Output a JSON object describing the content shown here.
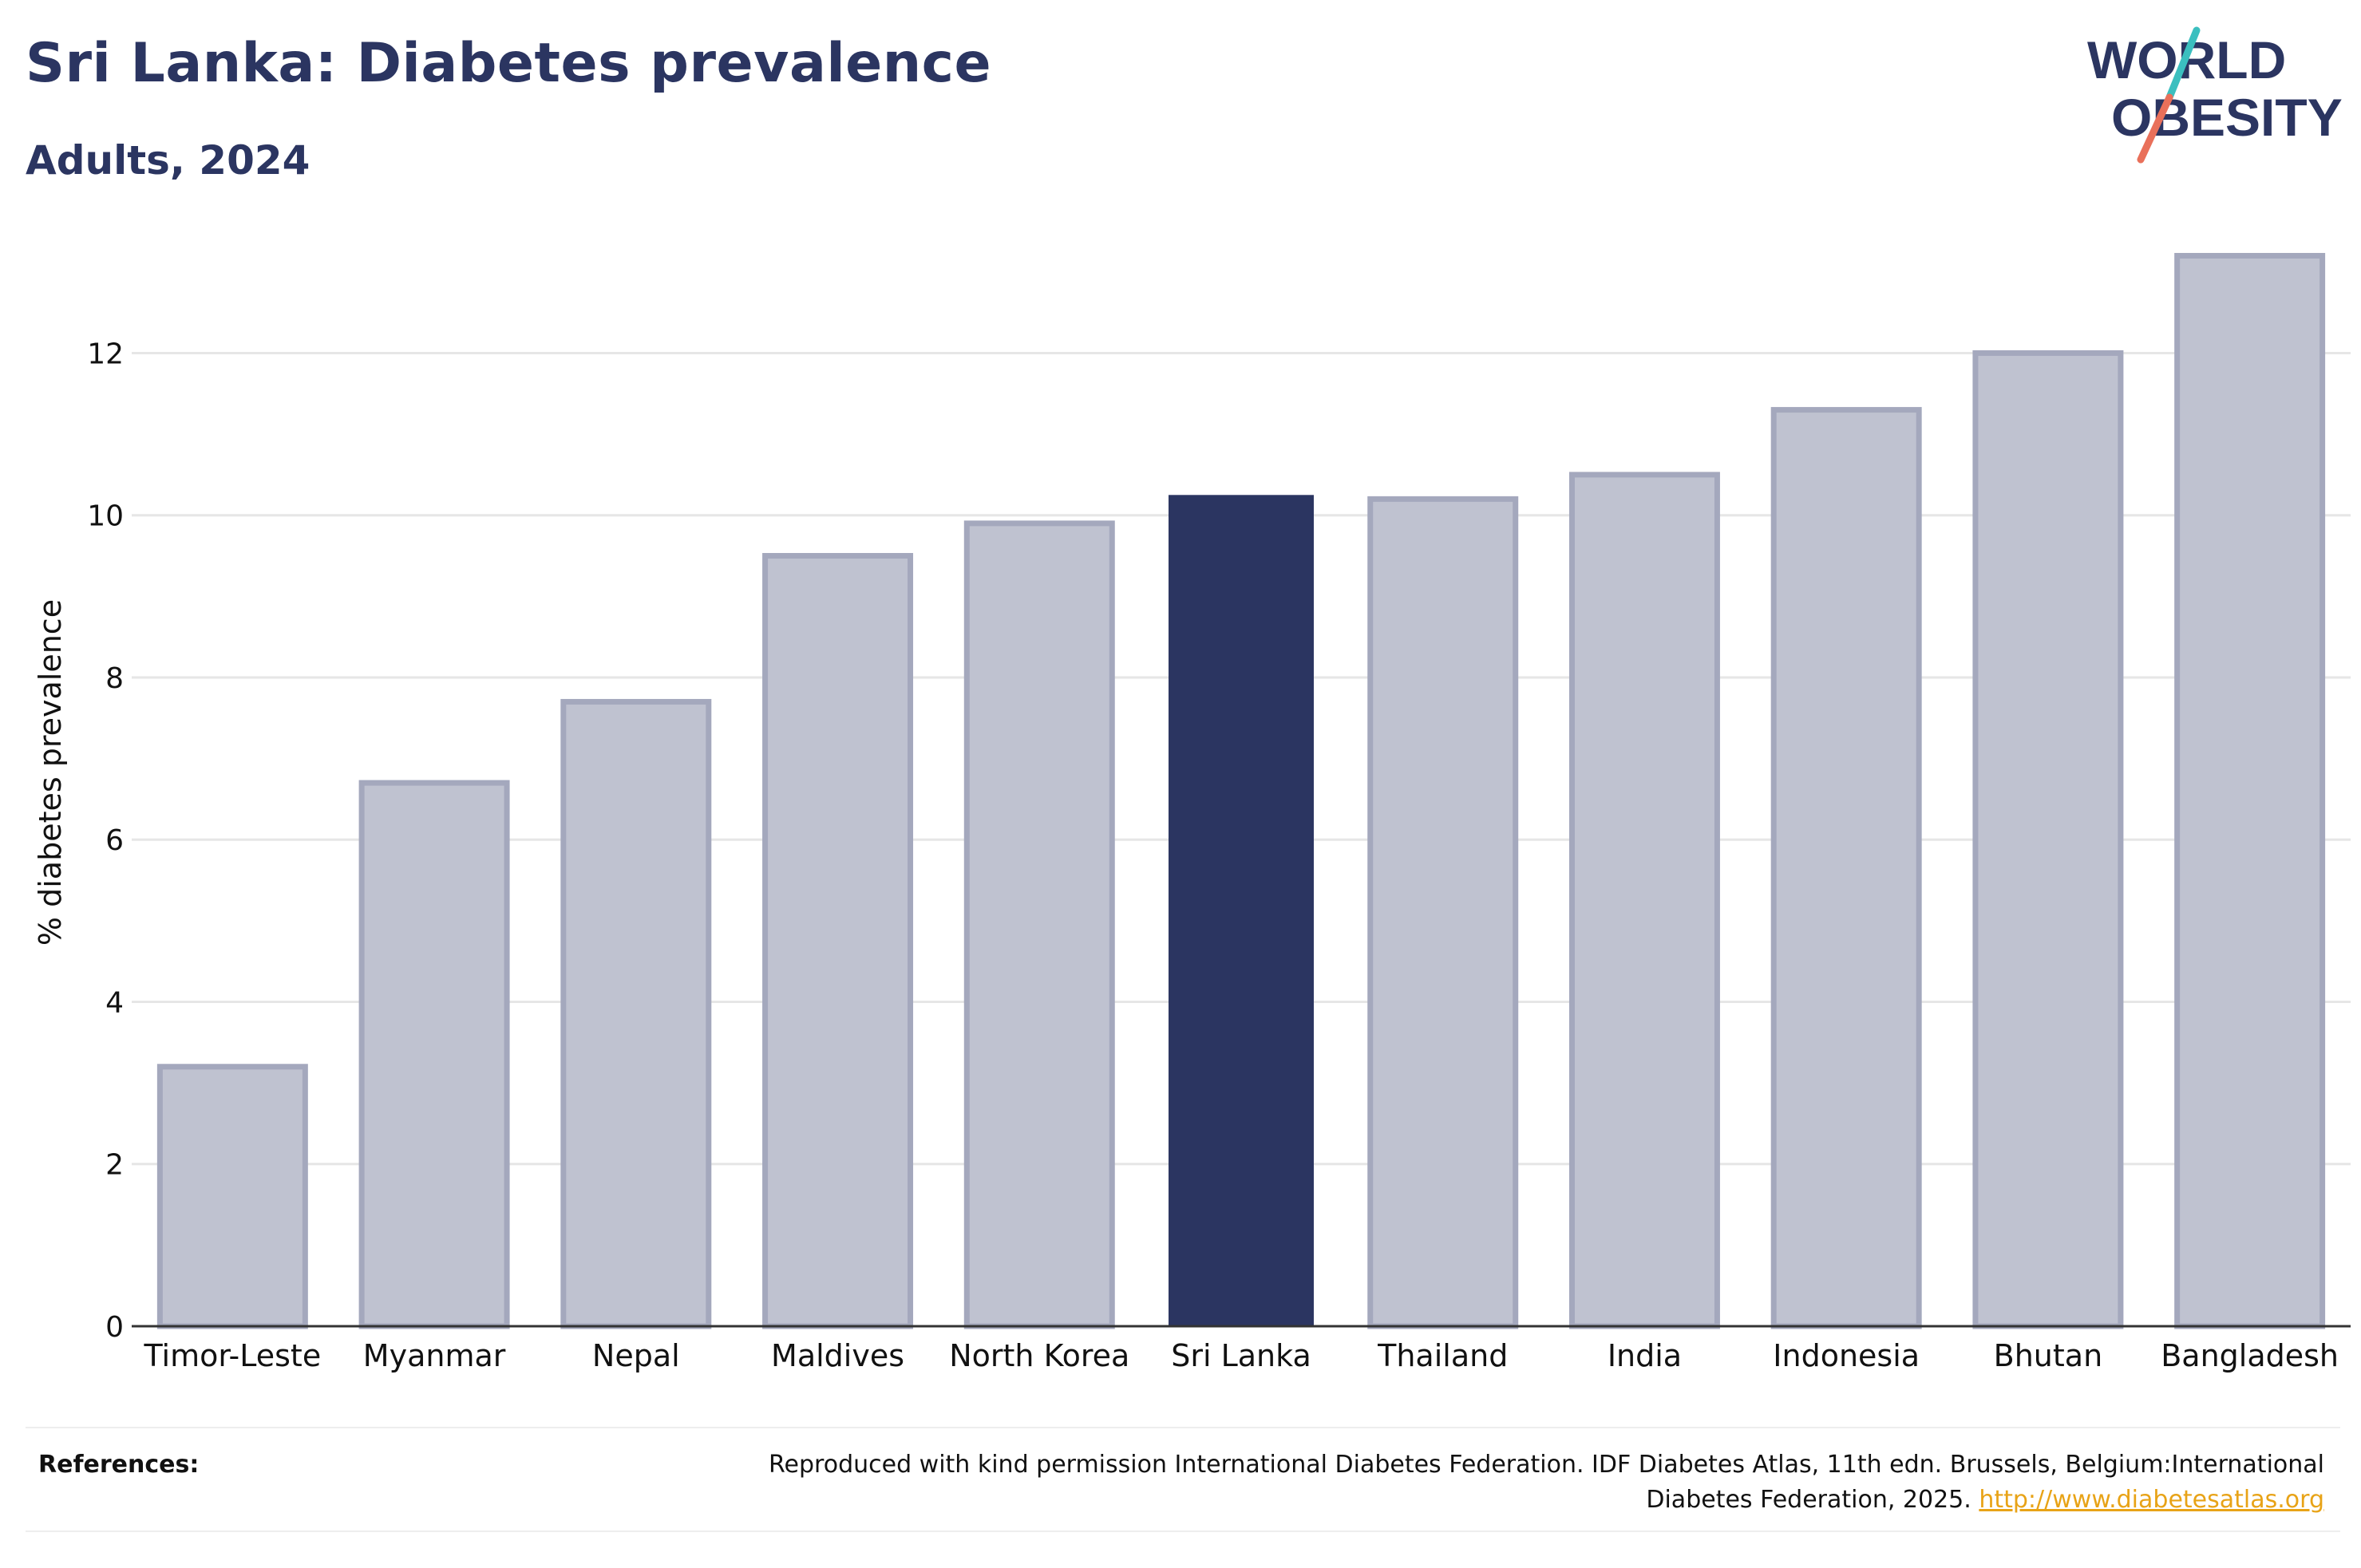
{
  "header": {
    "title": "Sri Lanka: Diabetes prevalence",
    "subtitle": "Adults, 2024"
  },
  "logo": {
    "line1": "WORLD",
    "line2": "OBESITY"
  },
  "colors": {
    "highlight": "#2b3561",
    "bar_fill": "#bfc2d0",
    "bar_stroke": "#a4a8bd",
    "grid": "#e6e6e6",
    "axis": "#333333",
    "logo_teal": "#3bbfbf",
    "logo_coral": "#e9705a"
  },
  "chart_data": {
    "type": "bar",
    "categories": [
      "Timor-Leste",
      "Myanmar",
      "Nepal",
      "Maldives",
      "North Korea",
      "Sri Lanka",
      "Thailand",
      "India",
      "Indonesia",
      "Bhutan",
      "Bangladesh"
    ],
    "values": [
      3.2,
      6.7,
      7.7,
      9.5,
      9.9,
      10.25,
      10.2,
      10.5,
      11.3,
      12.0,
      13.2
    ],
    "highlight": "Sri Lanka",
    "ylabel": "% diabetes prevalence",
    "xlabel": "",
    "ylim": [
      0,
      13.5
    ],
    "yticks": [
      0,
      2,
      4,
      6,
      8,
      10,
      12
    ],
    "grid": true
  },
  "references": {
    "label": "References:",
    "text": "Reproduced with kind permission International Diabetes Federation. IDF Diabetes Atlas, 11th edn. Brussels, Belgium:International Diabetes Federation, 2025.",
    "link": "http://www.diabetesatlas.org"
  }
}
